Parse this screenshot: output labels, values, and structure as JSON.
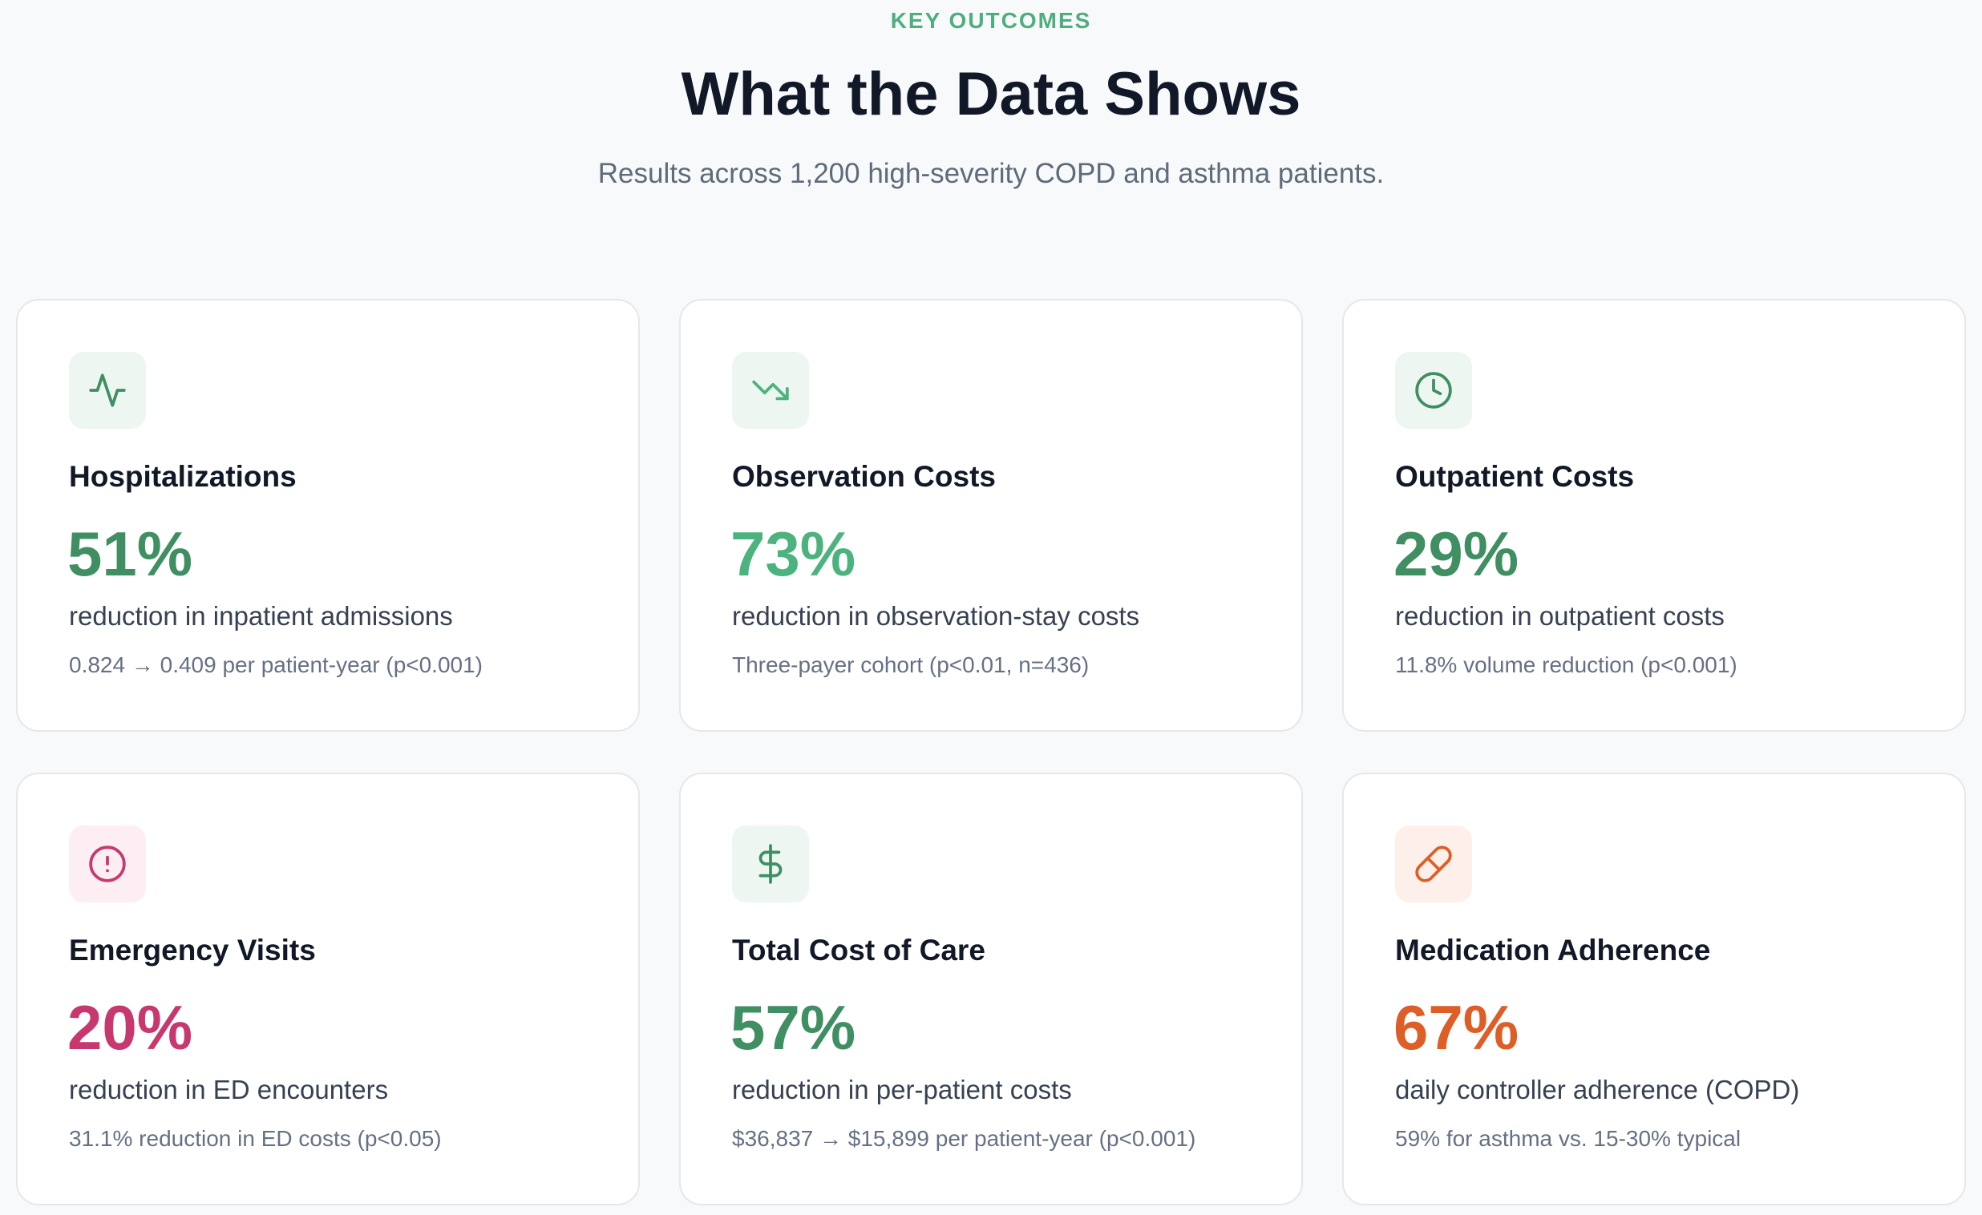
{
  "header": {
    "eyebrow": "KEY OUTCOMES",
    "title": "What the Data Shows",
    "subtitle": "Results across 1,200 high-severity COPD and asthma patients."
  },
  "colors": {
    "green": "#3f8f63",
    "green_light": "#4cb37e",
    "pink": "#c7386f",
    "orange": "#dd5e26",
    "green_bg": "#eef6f1",
    "pink_bg": "#fdeef3",
    "orange_bg": "#fdf0ea"
  },
  "cards": [
    {
      "icon": "activity-icon",
      "title": "Hospitalizations",
      "value": "51%",
      "description": "reduction in inpatient admissions",
      "note": "0.824 → 0.409 per patient-year (p<0.001)",
      "accent": "#3f8f63",
      "icon_bg": "#eef6f1"
    },
    {
      "icon": "trending-down-icon",
      "title": "Observation Costs",
      "value": "73%",
      "description": "reduction in observation-stay costs",
      "note": "Three-payer cohort (p<0.01, n=436)",
      "accent": "#4cb37e",
      "icon_bg": "#eef6f1"
    },
    {
      "icon": "clock-icon",
      "title": "Outpatient Costs",
      "value": "29%",
      "description": "reduction in outpatient costs",
      "note": "11.8% volume reduction (p<0.001)",
      "accent": "#3f8f63",
      "icon_bg": "#eef6f1"
    },
    {
      "icon": "alert-circle-icon",
      "title": "Emergency Visits",
      "value": "20%",
      "description": "reduction in ED encounters",
      "note": "31.1% reduction in ED costs (p<0.05)",
      "accent": "#c7386f",
      "icon_bg": "#fdeef3"
    },
    {
      "icon": "dollar-sign-icon",
      "title": "Total Cost of Care",
      "value": "57%",
      "description": "reduction in per-patient costs",
      "note": "$36,837 → $15,899 per patient-year (p<0.001)",
      "accent": "#3f8f63",
      "icon_bg": "#eef6f1"
    },
    {
      "icon": "pill-icon",
      "title": "Medication Adherence",
      "value": "67%",
      "description": "daily controller adherence (COPD)",
      "note": "59% for asthma vs. 15-30% typical",
      "accent": "#dd5e26",
      "icon_bg": "#fdf0ea"
    }
  ]
}
